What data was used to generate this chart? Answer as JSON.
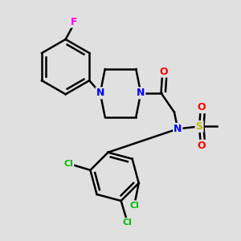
{
  "background_color": "#e0e0e0",
  "atom_colors": {
    "C": "#000000",
    "N": "#0000ff",
    "O": "#ff0000",
    "F": "#ff00ff",
    "Cl": "#00bb00",
    "S": "#bbbb00"
  },
  "bond_color": "#000000",
  "bond_width": 1.8,
  "figsize": [
    3.0,
    3.0
  ],
  "dpi": 100
}
